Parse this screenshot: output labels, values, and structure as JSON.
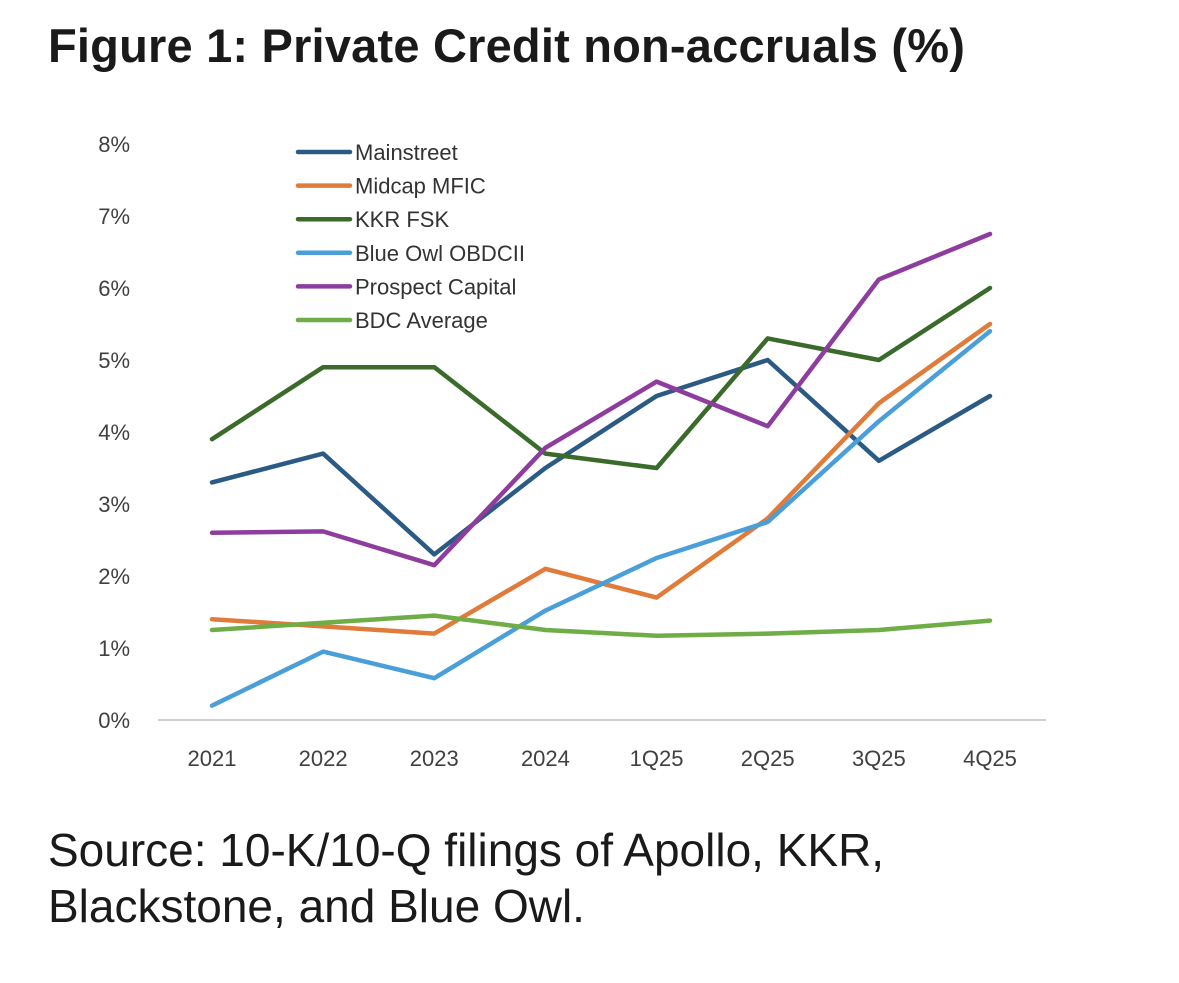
{
  "title": "Figure 1: Private Credit non-accruals (%)",
  "source": {
    "line1": "Source: 10-K/10-Q filings of Apollo, KKR,",
    "line2": "Blackstone, and Blue Owl."
  },
  "chart_data": {
    "type": "line",
    "title": "Figure 1: Private Credit non-accruals (%)",
    "xlabel": "",
    "ylabel": "",
    "categories": [
      "2021",
      "2022",
      "2023",
      "2024",
      "1Q25",
      "2Q25",
      "3Q25",
      "4Q25"
    ],
    "ylim": [
      0,
      8
    ],
    "yticks": [
      0,
      1,
      2,
      3,
      4,
      5,
      6,
      7,
      8
    ],
    "ytick_labels": [
      "0%",
      "1%",
      "2%",
      "3%",
      "4%",
      "5%",
      "6%",
      "7%",
      "8%"
    ],
    "grid": false,
    "legend_position": "top-left",
    "series": [
      {
        "name": "Mainstreet",
        "color": "#2b5b84",
        "values": [
          3.3,
          3.7,
          2.3,
          3.5,
          4.5,
          5.0,
          3.6,
          4.5
        ]
      },
      {
        "name": "Midcap MFIC",
        "color": "#e07b39",
        "values": [
          1.4,
          1.3,
          1.2,
          2.1,
          1.7,
          2.8,
          4.4,
          5.5
        ]
      },
      {
        "name": "KKR FSK",
        "color": "#3a6b2a",
        "values": [
          3.9,
          4.9,
          4.9,
          3.7,
          3.5,
          5.3,
          5.0,
          6.0
        ]
      },
      {
        "name": "Blue Owl OBDCII",
        "color": "#4a9fd8",
        "values": [
          0.2,
          0.95,
          0.58,
          1.52,
          2.25,
          2.75,
          4.15,
          5.4
        ]
      },
      {
        "name": "Prospect Capital",
        "color": "#8e3d9e",
        "values": [
          2.6,
          2.62,
          2.15,
          3.78,
          4.7,
          4.08,
          6.12,
          6.75
        ]
      },
      {
        "name": "BDC Average",
        "color": "#6fad47",
        "values": [
          1.25,
          1.35,
          1.45,
          1.25,
          1.17,
          1.2,
          1.25,
          1.38
        ]
      }
    ]
  }
}
